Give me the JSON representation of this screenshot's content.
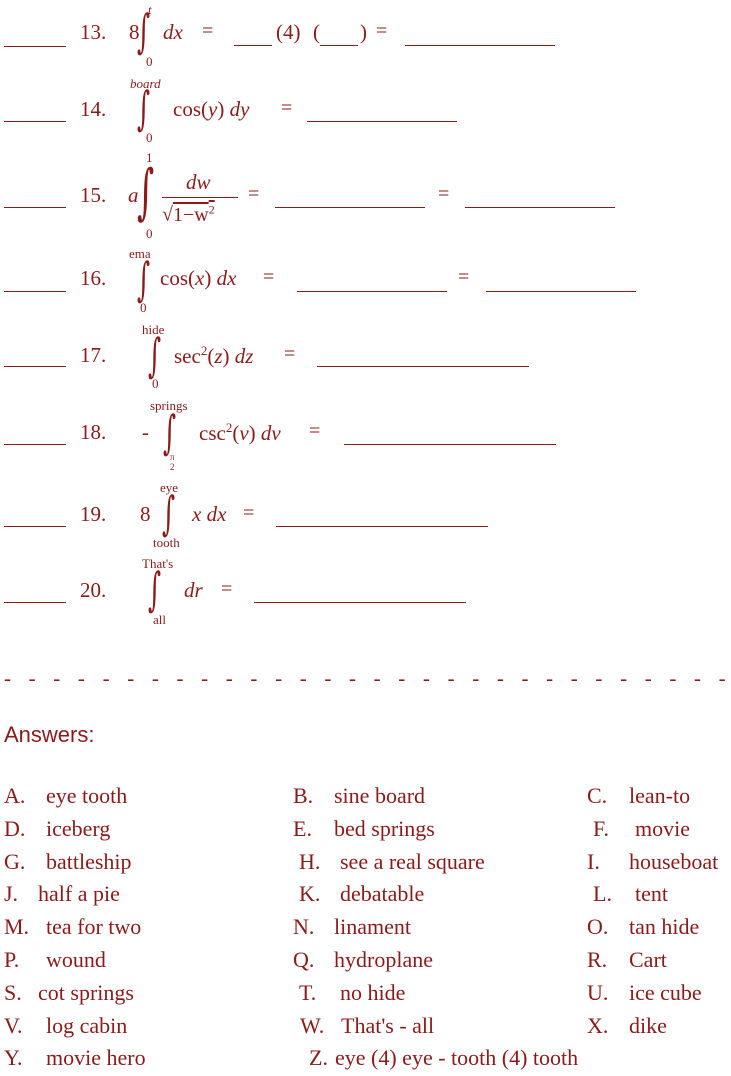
{
  "problems": [
    {
      "num": "13.",
      "eq": "=",
      "mid": "(4)",
      "open": "(",
      "close": ")",
      "eq2": "="
    },
    {
      "num": "14.",
      "upper": "board",
      "lower": "0",
      "expr": "cos(",
      "var": "y",
      "expr2": ")",
      "d": "dy",
      "eq": "="
    },
    {
      "num": "15.",
      "upper": "1",
      "lower": "0",
      "coef": "a",
      "top": "dw",
      "bottom": "1−w",
      "eq": "=",
      "eq2": "="
    },
    {
      "num": "16.",
      "upper": "ema",
      "lower": "0",
      "expr": "cos(",
      "var": "x",
      "expr2": ")",
      "d": "dx",
      "eq": "=",
      "eq2": "="
    },
    {
      "num": "17.",
      "upper": "hide",
      "lower": "0",
      "expr": "sec",
      "sup": "2",
      "expr2": "(",
      "var": "z",
      "expr3": ")",
      "d": "dz",
      "eq": "="
    },
    {
      "num": "18.",
      "upper": "springs",
      "lower": "π",
      "lower2": "2",
      "sign": "-",
      "expr": "csc",
      "sup": "2",
      "expr2": "(",
      "var": "v",
      "expr3": ")",
      "d": "dv",
      "eq": "="
    },
    {
      "num": "19.",
      "upper": "eye",
      "lower": "tooth",
      "coef": "8",
      "x": "x",
      "d": "dx",
      "eq": "="
    },
    {
      "num": "20.",
      "upper": "That's",
      "lower": "all",
      "d": "dr",
      "eq": "="
    }
  ],
  "p13": {
    "coef": "8",
    "upper": "t",
    "lower": "0",
    "d": "dx"
  },
  "divider": "- - - - - - - - - - - - - - - - - - - - - - - - - - - - - - - - - - - - - - - - - - - - - - - - - - - - - -",
  "answers_title": "Answers:",
  "answers": [
    [
      "A.",
      "eye tooth"
    ],
    [
      "B.",
      "sine board"
    ],
    [
      "C.",
      "lean-to"
    ],
    [
      "D.",
      "iceberg"
    ],
    [
      "E.",
      "bed springs"
    ],
    [
      "F.",
      "movie"
    ],
    [
      "G.",
      "battleship"
    ],
    [
      "H.",
      "see a real square"
    ],
    [
      "I.",
      "houseboat"
    ],
    [
      "J.",
      "half a pie"
    ],
    [
      "K.",
      "debatable"
    ],
    [
      "L.",
      "tent"
    ],
    [
      "M.",
      "tea for two"
    ],
    [
      "N.",
      "linament"
    ],
    [
      "O.",
      "tan hide"
    ],
    [
      "P.",
      "wound"
    ],
    [
      "Q.",
      "hydroplane"
    ],
    [
      "R.",
      "Cart"
    ],
    [
      "S.",
      "cot springs"
    ],
    [
      "T.",
      "no hide"
    ],
    [
      "U.",
      "ice cube"
    ],
    [
      "V.",
      "log cabin"
    ],
    [
      "W.",
      "That's - all"
    ],
    [
      "X.",
      "dike"
    ],
    [
      "Y.",
      "movie hero"
    ],
    [
      "Z.",
      "eye (4) eye - tooth (4) tooth"
    ]
  ]
}
